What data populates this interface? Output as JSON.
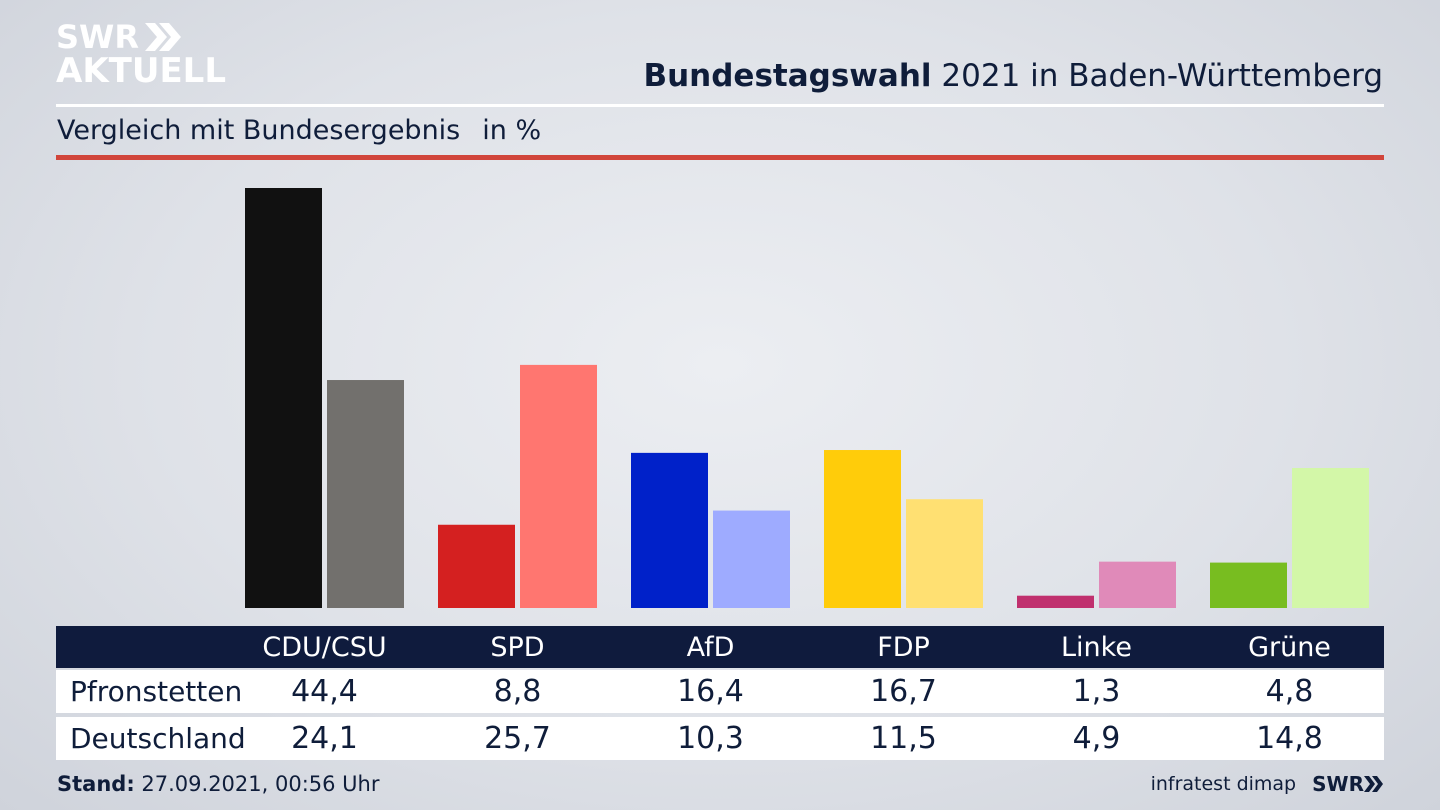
{
  "logo": {
    "line1": "SWR",
    "line2": "AKTUELL"
  },
  "header": {
    "title_bold": "Bundestagswahl",
    "title_rest": " 2021 in Baden-Württemberg",
    "subtitle": "Vergleich mit Bundesergebnis",
    "unit": "in %"
  },
  "chart_data": {
    "type": "bar",
    "categories": [
      "CDU/CSU",
      "SPD",
      "AfD",
      "FDP",
      "Linke",
      "Grüne"
    ],
    "series": [
      {
        "name": "Pfronstetten",
        "values": [
          44.4,
          8.8,
          16.4,
          16.7,
          1.3,
          4.8
        ],
        "labels": [
          "44,4",
          "8,8",
          "16,4",
          "16,7",
          "1,3",
          "4,8"
        ],
        "colors": [
          "#111111",
          "#d42020",
          "#0021c9",
          "#ffcc0a",
          "#c0306e",
          "#78bd20"
        ]
      },
      {
        "name": "Deutschland",
        "values": [
          24.1,
          25.7,
          10.3,
          11.5,
          4.9,
          14.8
        ],
        "labels": [
          "24,1",
          "25,7",
          "10,3",
          "11,5",
          "4,9",
          "14,8"
        ],
        "colors": [
          "#72706d",
          "#ff7670",
          "#9eabff",
          "#ffe072",
          "#e08ab9",
          "#d3f7a8"
        ]
      }
    ],
    "ylim": [
      0,
      44.4
    ],
    "grid": false
  },
  "footer": {
    "stand_label": "Stand:",
    "stand_value": " 27.09.2021, 00:56 Uhr",
    "source": "infratest dimap",
    "brand": "SWR"
  }
}
